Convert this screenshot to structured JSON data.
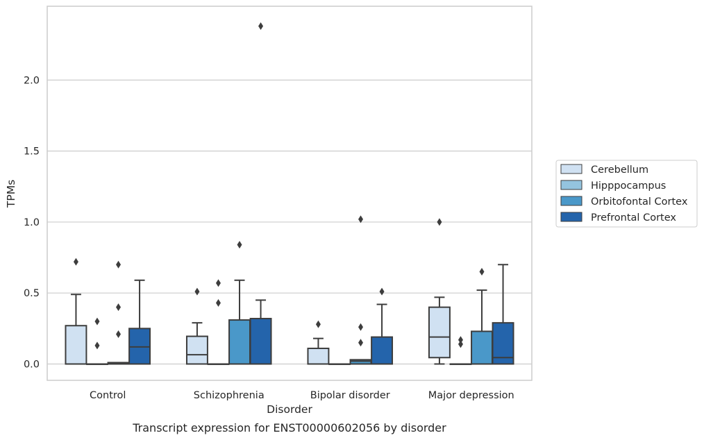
{
  "chart_data": {
    "type": "box",
    "title": "",
    "caption": "Transcript expression for ENST00000602056 by disorder",
    "xlabel": "Disorder",
    "ylabel": "TPMs",
    "ylim": [
      -0.115,
      2.52
    ],
    "yticks": [
      0.0,
      0.5,
      1.0,
      1.5,
      2.0
    ],
    "ytick_labels": [
      "0.0",
      "0.5",
      "1.0",
      "1.5",
      "2.0"
    ],
    "grid": "horizontal",
    "legend_position": "right",
    "categories": [
      "Control",
      "Schizophrenia",
      "Bipolar disorder",
      "Major depression"
    ],
    "series": [
      {
        "name": "Cerebellum",
        "color": "#d0e1f2",
        "boxes": [
          {
            "q1": 0.0,
            "median": 0.0,
            "q3": 0.27,
            "whislo": 0.0,
            "whishi": 0.49,
            "fliers": [
              0.72
            ]
          },
          {
            "q1": 0.0,
            "median": 0.065,
            "q3": 0.195,
            "whislo": 0.0,
            "whishi": 0.29,
            "fliers": [
              0.51
            ]
          },
          {
            "q1": 0.0,
            "median": 0.0,
            "q3": 0.11,
            "whislo": 0.0,
            "whishi": 0.18,
            "fliers": [
              0.28
            ]
          },
          {
            "q1": 0.045,
            "median": 0.19,
            "q3": 0.4,
            "whislo": 0.0,
            "whishi": 0.47,
            "fliers": [
              1.0
            ]
          }
        ]
      },
      {
        "name": "Hipppocampus",
        "color": "#94c4df",
        "boxes": [
          {
            "q1": 0.0,
            "median": 0.0,
            "q3": 0.0,
            "whislo": 0.0,
            "whishi": 0.0,
            "fliers": [
              0.13,
              0.3
            ]
          },
          {
            "q1": 0.0,
            "median": 0.0,
            "q3": 0.0,
            "whislo": 0.0,
            "whishi": 0.0,
            "fliers": [
              0.43,
              0.57
            ]
          },
          {
            "q1": 0.0,
            "median": 0.0,
            "q3": 0.0,
            "whislo": 0.0,
            "whishi": 0.0,
            "fliers": []
          },
          {
            "q1": 0.0,
            "median": 0.0,
            "q3": 0.0,
            "whislo": 0.0,
            "whishi": 0.0,
            "fliers": [
              0.14,
              0.17
            ]
          }
        ]
      },
      {
        "name": "Orbitofontal Cortex",
        "color": "#4a98c9",
        "boxes": [
          {
            "q1": 0.0,
            "median": 0.005,
            "q3": 0.01,
            "whislo": 0.0,
            "whishi": 0.01,
            "fliers": [
              0.21,
              0.4,
              0.7
            ]
          },
          {
            "q1": 0.0,
            "median": 0.0,
            "q3": 0.31,
            "whislo": 0.0,
            "whishi": 0.59,
            "fliers": [
              0.84
            ]
          },
          {
            "q1": 0.0,
            "median": 0.02,
            "q3": 0.03,
            "whislo": 0.0,
            "whishi": 0.03,
            "fliers": [
              0.15,
              0.26,
              1.02
            ]
          },
          {
            "q1": 0.0,
            "median": 0.0,
            "q3": 0.23,
            "whislo": 0.0,
            "whishi": 0.52,
            "fliers": [
              0.65
            ]
          }
        ]
      },
      {
        "name": "Prefrontal Cortex",
        "color": "#2464ab",
        "boxes": [
          {
            "q1": 0.0,
            "median": 0.12,
            "q3": 0.25,
            "whislo": 0.0,
            "whishi": 0.59,
            "fliers": []
          },
          {
            "q1": 0.0,
            "median": 0.0,
            "q3": 0.32,
            "whislo": 0.0,
            "whishi": 0.45,
            "fliers": [
              2.38
            ]
          },
          {
            "q1": 0.0,
            "median": 0.0,
            "q3": 0.19,
            "whislo": 0.0,
            "whishi": 0.42,
            "fliers": [
              0.51
            ]
          },
          {
            "q1": 0.0,
            "median": 0.045,
            "q3": 0.29,
            "whislo": 0.0,
            "whishi": 0.7,
            "fliers": []
          }
        ]
      }
    ]
  }
}
